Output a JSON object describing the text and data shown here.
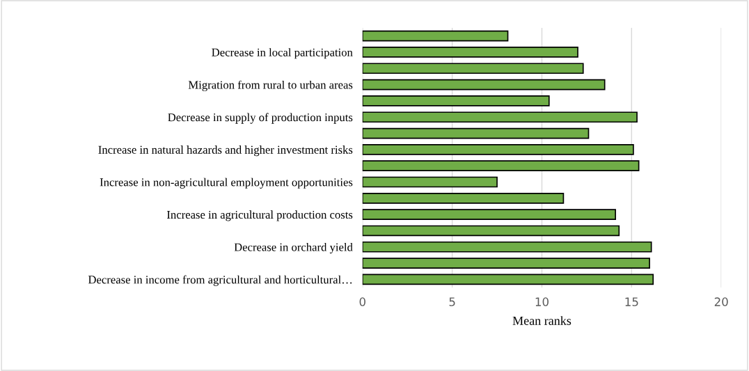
{
  "chart_data": {
    "type": "bar",
    "orientation": "horizontal",
    "xlabel": "Mean ranks",
    "categories": [
      null,
      "Decrease in local participation",
      null,
      "Migration from rural to urban areas",
      null,
      "Decrease in supply of production inputs",
      null,
      "Increase in natural hazards and higher investment risks",
      null,
      "Increase in non-agricultural employment opportunities",
      null,
      "Increase in agricultural production costs",
      null,
      "Decrease in orchard yield",
      null,
      "Decrease in income from agricultural and horticultural…"
    ],
    "values": [
      8.1,
      12.0,
      12.3,
      13.5,
      10.4,
      15.3,
      12.6,
      15.1,
      15.4,
      7.5,
      11.2,
      14.1,
      14.3,
      16.1,
      16.0,
      16.2
    ],
    "color": "#70ad47",
    "xlim": [
      0,
      20
    ],
    "xticks": [
      0,
      5,
      10,
      15,
      20
    ],
    "grid": "x"
  }
}
